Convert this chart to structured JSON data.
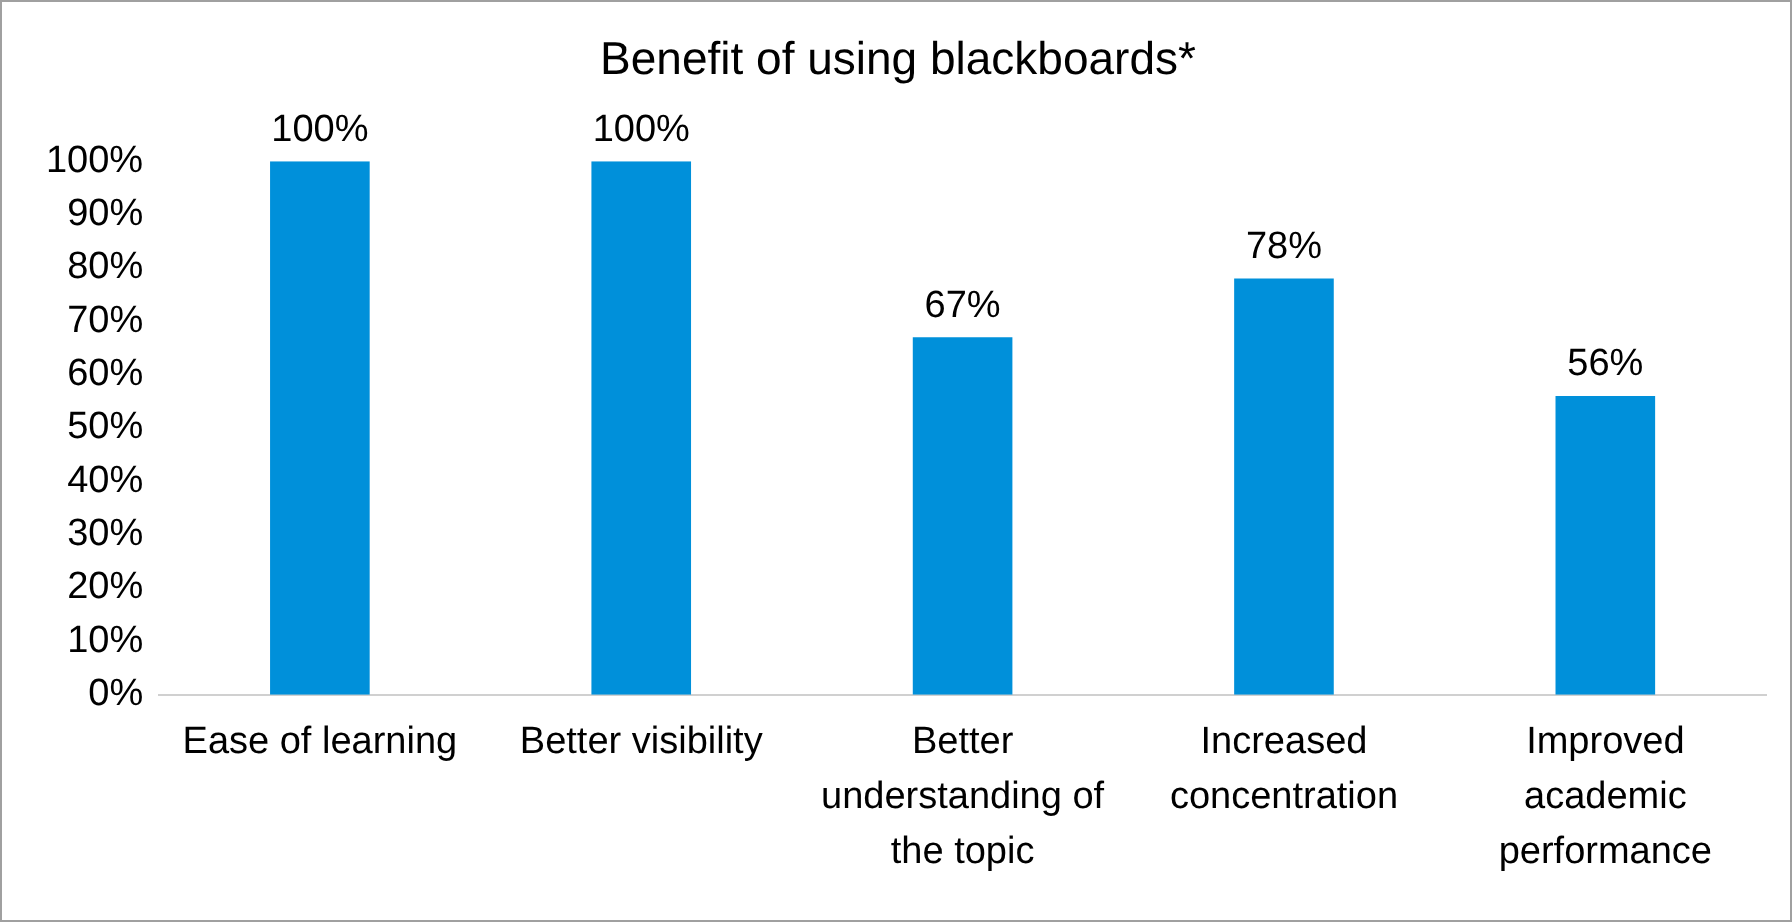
{
  "chart_data": {
    "type": "bar",
    "title": "Benefit of using blackboards*",
    "categories": [
      "Ease of learning",
      "Better visibility",
      "Better understanding of the topic",
      "Increased concentration",
      "Improved academic performance"
    ],
    "values": [
      100,
      100,
      67,
      78,
      56
    ],
    "color": "#0090da",
    "value_labels": [
      "100%",
      "100%",
      "67%",
      "78%",
      "56%"
    ],
    "ylim": [
      0,
      100
    ],
    "yticks": [
      {
        "value": 0,
        "label": "0%"
      },
      {
        "value": 10,
        "label": "10%"
      },
      {
        "value": 20,
        "label": "20%"
      },
      {
        "value": 30,
        "label": "30%"
      },
      {
        "value": 40,
        "label": "40%"
      },
      {
        "value": 50,
        "label": "50%"
      },
      {
        "value": 60,
        "label": "60%"
      },
      {
        "value": 70,
        "label": "70%"
      },
      {
        "value": 80,
        "label": "80%"
      },
      {
        "value": 90,
        "label": "90%"
      },
      {
        "value": 100,
        "label": "100%"
      }
    ],
    "grid": false,
    "legend": false
  }
}
